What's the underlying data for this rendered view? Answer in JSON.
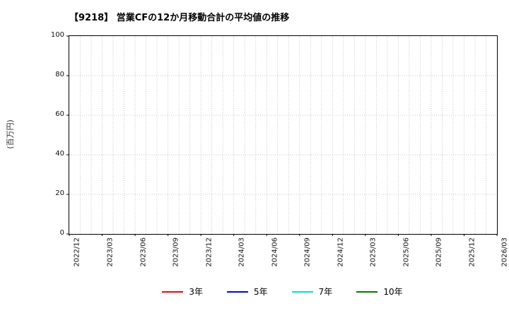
{
  "chart_data": {
    "type": "line",
    "title": "【9218】 営業CFの12か月移動合計の平均値の推移",
    "ylabel": "(百万円)",
    "xlabel": "",
    "ylim": [
      0,
      100
    ],
    "yticks": [
      0,
      20,
      40,
      60,
      80,
      100
    ],
    "categories": [
      "2022/12",
      "2023/03",
      "2023/06",
      "2023/09",
      "2023/12",
      "2024/03",
      "2024/06",
      "2024/09",
      "2024/12",
      "2025/03",
      "2025/06",
      "2025/09",
      "2025/12",
      "2026/03"
    ],
    "x_minor_per_interval": 3,
    "grid": true,
    "grid_style": "dotted",
    "legend_position": "bottom",
    "series": [
      {
        "name": "3年",
        "color": "#ff0000",
        "values": []
      },
      {
        "name": "5年",
        "color": "#0000ff",
        "values": []
      },
      {
        "name": "7年",
        "color": "#00dddd",
        "values": []
      },
      {
        "name": "10年",
        "color": "#008000",
        "values": []
      }
    ]
  }
}
